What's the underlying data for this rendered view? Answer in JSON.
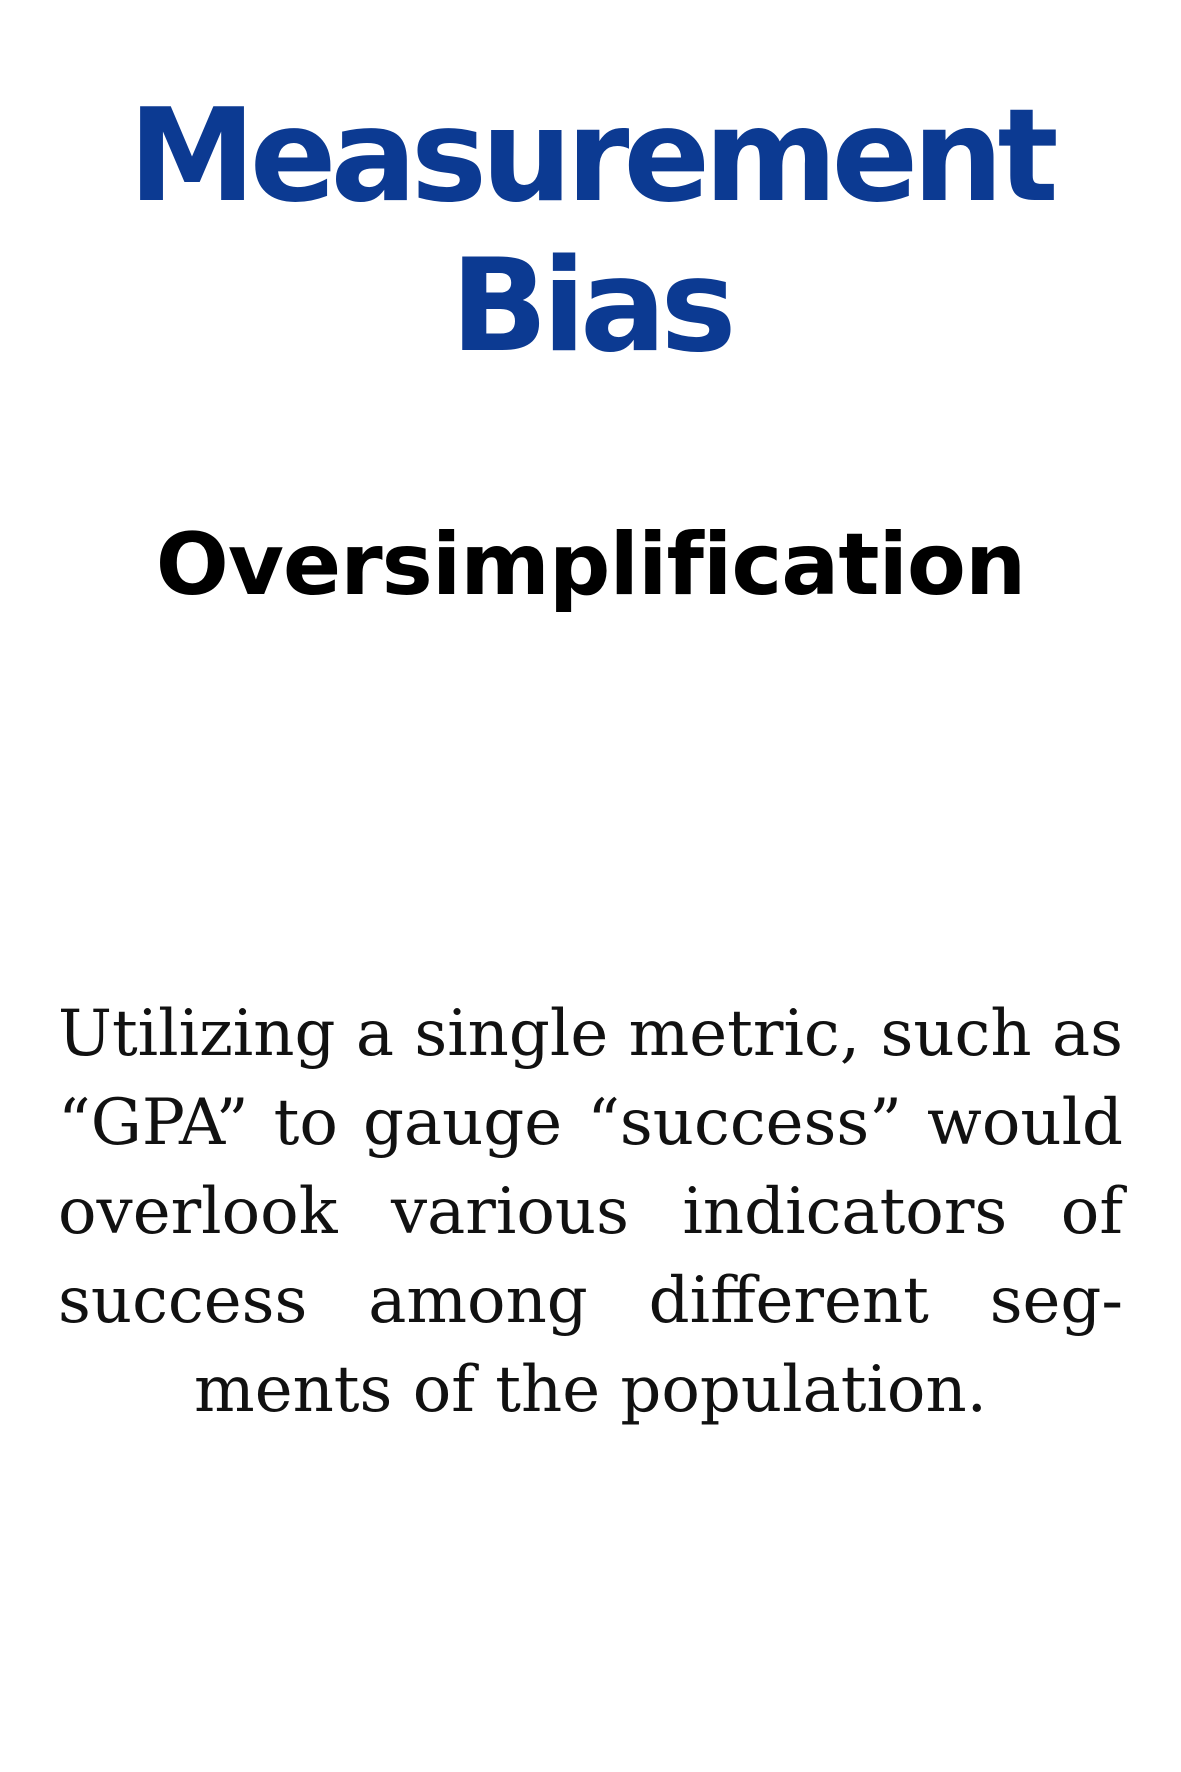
{
  "card": {
    "title_lines": [
      "Measurement",
      "Bias"
    ],
    "subtitle": "Oversimplification",
    "body_lines": [
      "Utilizing a single metric, such as",
      "“GPA” to gauge “success” would",
      "overlook various indicators of",
      "success among different seg-",
      "ments of the population."
    ],
    "colors": {
      "title": "#0c3a92",
      "subtitle": "#000000",
      "body": "#111111",
      "background": "#ffffff"
    }
  }
}
